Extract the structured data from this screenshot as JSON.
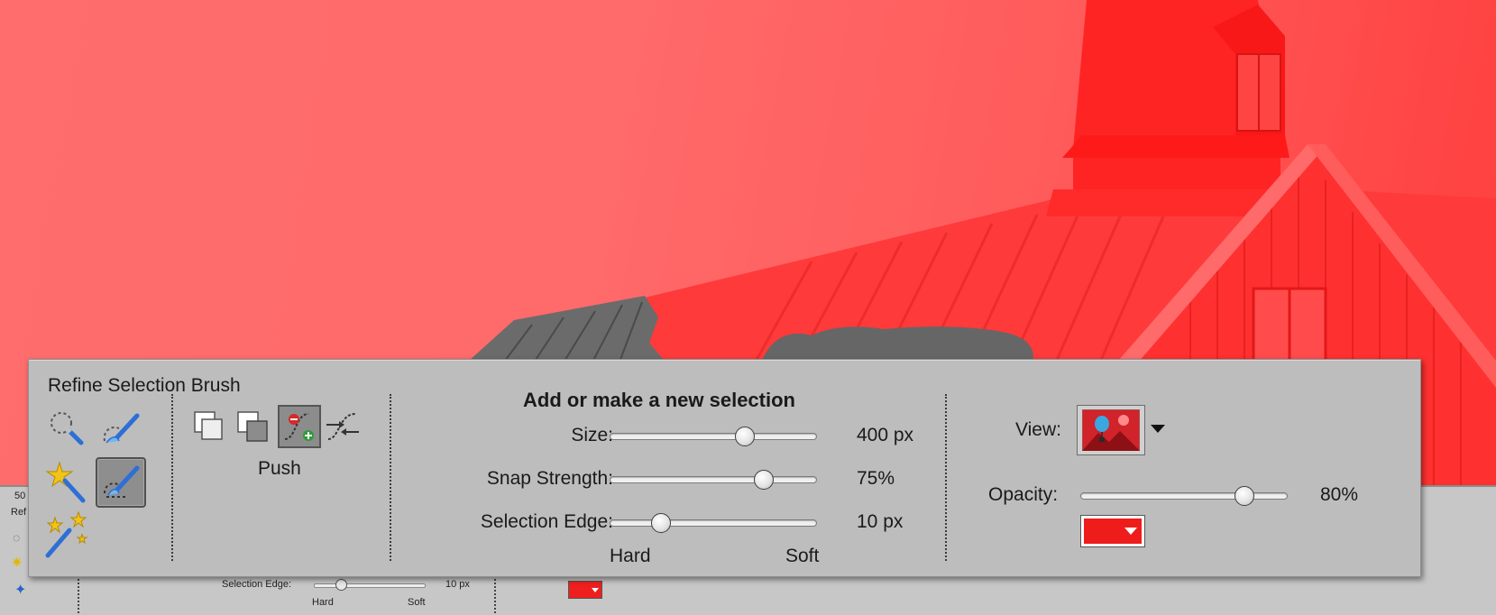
{
  "app": {
    "zoom_fragment": "50",
    "panel_fragment": "Ref"
  },
  "panel": {
    "title": "Refine Selection Brush",
    "tools": [
      {
        "name": "selection-brush-icon",
        "active": false
      },
      {
        "name": "quick-selection-icon",
        "active": false
      },
      {
        "name": "magic-wand-icon",
        "active": false
      },
      {
        "name": "refine-selection-brush-icon",
        "active": true
      },
      {
        "name": "auto-selection-icon",
        "active": false
      }
    ],
    "modes": [
      {
        "name": "new-selection-icon",
        "active": false
      },
      {
        "name": "add-to-selection-icon",
        "active": false
      },
      {
        "name": "push-mode-icon",
        "active": true
      },
      {
        "name": "smooth-mode-icon",
        "active": false
      }
    ],
    "mode_label": "Push",
    "heading": "Add or make a new selection",
    "size": {
      "label": "Size:",
      "value": "400 px",
      "level": 0.66
    },
    "snap_strength": {
      "label": "Snap Strength:",
      "value": "75%",
      "level": 0.75
    },
    "selection_edge": {
      "label": "Selection Edge:",
      "value": "10 px",
      "level": 0.25
    },
    "edge_min_label": "Hard",
    "edge_max_label": "Soft",
    "view_label": "View:",
    "opacity": {
      "label": "Opacity:",
      "value": "80%",
      "level": 0.8
    },
    "overlay_color": "#ef1c1c"
  },
  "bottom_bar": {
    "selection_edge_label": "Selection Edge:",
    "selection_edge_value": "10 px",
    "hard_label": "Hard",
    "soft_label": "Soft"
  },
  "colors": {
    "overlay": "#ff6b6b",
    "panel_bg": "#bdbdbd"
  }
}
